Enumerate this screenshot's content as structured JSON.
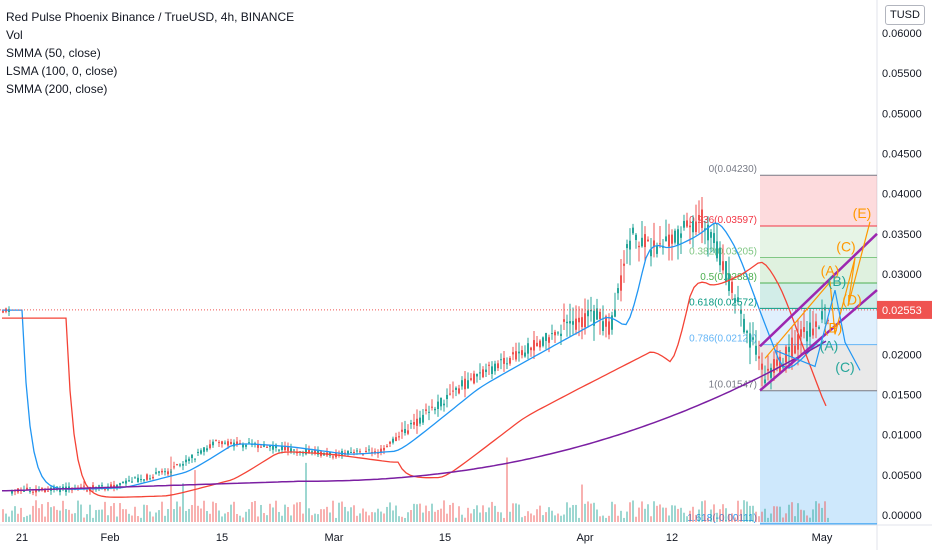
{
  "header": {
    "title": "Red Pulse Phoenix Binance / TrueUSD, 4h, BINANCE",
    "indicators": [
      "Vol",
      "SMMA (50, close)",
      "LSMA (100, 0, close)",
      "SMMA (200, close)"
    ],
    "currency_button": "TUSD"
  },
  "colors": {
    "up": "#26a69a",
    "down": "#ef5350",
    "smma50": "#2196f3",
    "lsma100": "#f44336",
    "smma200": "#7b1fa2",
    "price_line": "#ef5350",
    "channel": "#9c27b0",
    "wave_orange": "#ff9800",
    "wave_teal": "#2196f3"
  },
  "chart_data": {
    "type": "candlestick",
    "symbol": "Red Pulse Phoenix Binance / TrueUSD",
    "interval": "4h",
    "exchange": "BINANCE",
    "x_ticks": [
      "21",
      "Feb",
      "15",
      "Mar",
      "15",
      "Apr",
      "12",
      "May"
    ],
    "y_ticks": [
      "0.06000",
      "0.05500",
      "0.05000",
      "0.04500",
      "0.04000",
      "0.03500",
      "0.03000",
      "0.02500",
      "0.02000",
      "0.01500",
      "0.01000",
      "0.00500",
      "0.00000"
    ],
    "ylim": [
      0,
      0.06
    ],
    "last_price": "0.02553",
    "price_path": [
      [
        "21",
        0.003
      ],
      [
        "Feb",
        0.0034
      ],
      [
        "mid-Feb early",
        0.0055
      ],
      [
        "15",
        0.009
      ],
      [
        "late Feb",
        0.0085
      ],
      [
        "Mar",
        0.0075
      ],
      [
        "early Mar",
        0.008
      ],
      [
        "15",
        0.012
      ],
      [
        "mid Mar",
        0.016
      ],
      [
        "late Mar",
        0.0195
      ],
      [
        "early Apr",
        0.025
      ],
      [
        "Apr",
        0.023
      ],
      [
        "Apr 5",
        0.035
      ],
      [
        "Apr 8",
        0.033
      ],
      [
        "12",
        0.035
      ],
      [
        "Apr 15",
        0.037
      ],
      [
        "Apr 18",
        0.032
      ],
      [
        "Apr 21",
        0.025
      ],
      [
        "Apr 24",
        0.017
      ],
      [
        "Apr 27",
        0.022
      ],
      [
        "May",
        0.0255
      ]
    ],
    "fib_levels": [
      {
        "label": "0(0.04230)",
        "value": 0.0423
      },
      {
        "label": "0.236(0.03597)",
        "value": 0.03597
      },
      {
        "label": "0.382(0.03205)",
        "value": 0.03205
      },
      {
        "label": "0.5(0.02888)",
        "value": 0.02888
      },
      {
        "label": "0.618(0.02572)",
        "value": 0.02572
      },
      {
        "label": "0.786(0.02121)",
        "value": 0.02121
      },
      {
        "label": "1(0.01547)",
        "value": 0.01547
      },
      {
        "label": "1.618(-0.00111)",
        "value": -0.00111
      }
    ],
    "wave_labels_orange": [
      "(A)",
      "(B)",
      "(C)",
      "(D)",
      "(E)"
    ],
    "wave_labels_teal": [
      "(A)",
      "(B)",
      "(C)"
    ]
  }
}
